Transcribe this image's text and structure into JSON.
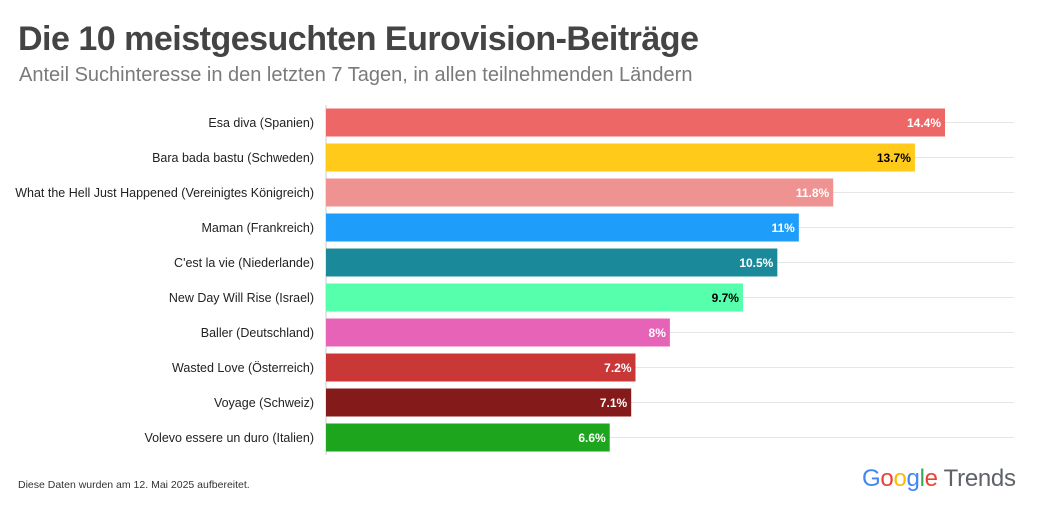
{
  "title": "Die 10 meistgesuchten Eurovision-Beiträge",
  "subtitle": "Anteil Suchinteresse in den letzten 7 Tagen, in allen teilnehmenden Ländern",
  "footnote": "Diese Daten wurden am 12. Mai 2025 aufbereitet.",
  "branding": {
    "word1_letters": [
      "G",
      "o",
      "o",
      "g",
      "l",
      "e"
    ],
    "word1_colors": [
      "#4285F4",
      "#EA4335",
      "#FBBC05",
      "#4285F4",
      "#34A853",
      "#EA4335"
    ],
    "word2": "Trends"
  },
  "chart_data": {
    "type": "bar",
    "orientation": "horizontal",
    "categories": [
      "Esa diva (Spanien)",
      "Bara bada bastu (Schweden)",
      "What the Hell Just Happened (Vereinigtes Königreich)",
      "Maman (Frankreich)",
      "C'est la vie (Niederlande)",
      "New Day Will Rise (Israel)",
      "Baller (Deutschland)",
      "Wasted Love (Österreich)",
      "Voyage (Schweiz)",
      "Volevo essere un duro (Italien)"
    ],
    "values": [
      14.4,
      13.7,
      11.8,
      11,
      10.5,
      9.7,
      8,
      7.2,
      7.1,
      6.6
    ],
    "value_labels": [
      "14.4%",
      "13.7%",
      "11.8%",
      "11%",
      "10.5%",
      "9.7%",
      "8%",
      "7.2%",
      "7.1%",
      "6.6%"
    ],
    "colors": [
      "#ED6767",
      "#FFCA1A",
      "#EE9292",
      "#1F9DFB",
      "#1A8A9A",
      "#55FFAB",
      "#E763B7",
      "#C93737",
      "#841A1A",
      "#1EA51E"
    ],
    "label_colors": [
      "#ffffff",
      "#000000",
      "#ffffff",
      "#ffffff",
      "#ffffff",
      "#000000",
      "#ffffff",
      "#ffffff",
      "#ffffff",
      "#ffffff"
    ],
    "xlim": [
      0,
      16
    ],
    "grid": true,
    "legend": "none"
  }
}
